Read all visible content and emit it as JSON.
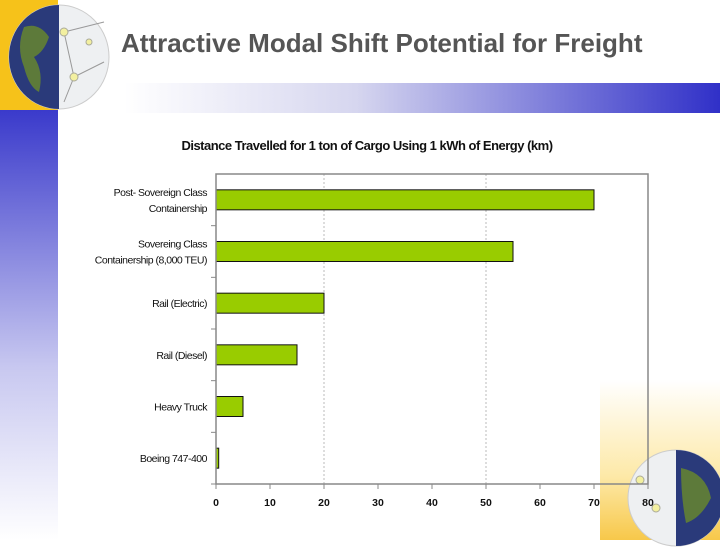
{
  "slide": {
    "title": "Attractive Modal Shift Potential for Freight"
  },
  "chart_data": {
    "type": "bar",
    "orientation": "horizontal",
    "title": "Distance Travelled for 1 ton of Cargo Using 1 kWh of Energy (km)",
    "categories": [
      "Post- Sovereign Class Containership",
      "Sovereing Class Containership (8,000 TEU)",
      "Rail (Electric)",
      "Rail (Diesel)",
      "Heavy Truck",
      "Boeing 747-400"
    ],
    "category_lines": [
      [
        "Post- Sovereign Class",
        "Containership"
      ],
      [
        "Sovereing Class",
        "Containership (8,000 TEU)"
      ],
      [
        "Rail (Electric)"
      ],
      [
        "Rail (Diesel)"
      ],
      [
        "Heavy Truck"
      ],
      [
        "Boeing 747-400"
      ]
    ],
    "values": [
      70,
      55,
      20,
      15,
      5,
      0.5
    ],
    "xlim": [
      0,
      80
    ],
    "xticks": [
      "0",
      "10",
      "20",
      "30",
      "40",
      "50",
      "60",
      "70",
      "80"
    ],
    "gridlines_at": [
      20,
      50
    ],
    "bar_color": "#99cc00",
    "legend": "none"
  }
}
